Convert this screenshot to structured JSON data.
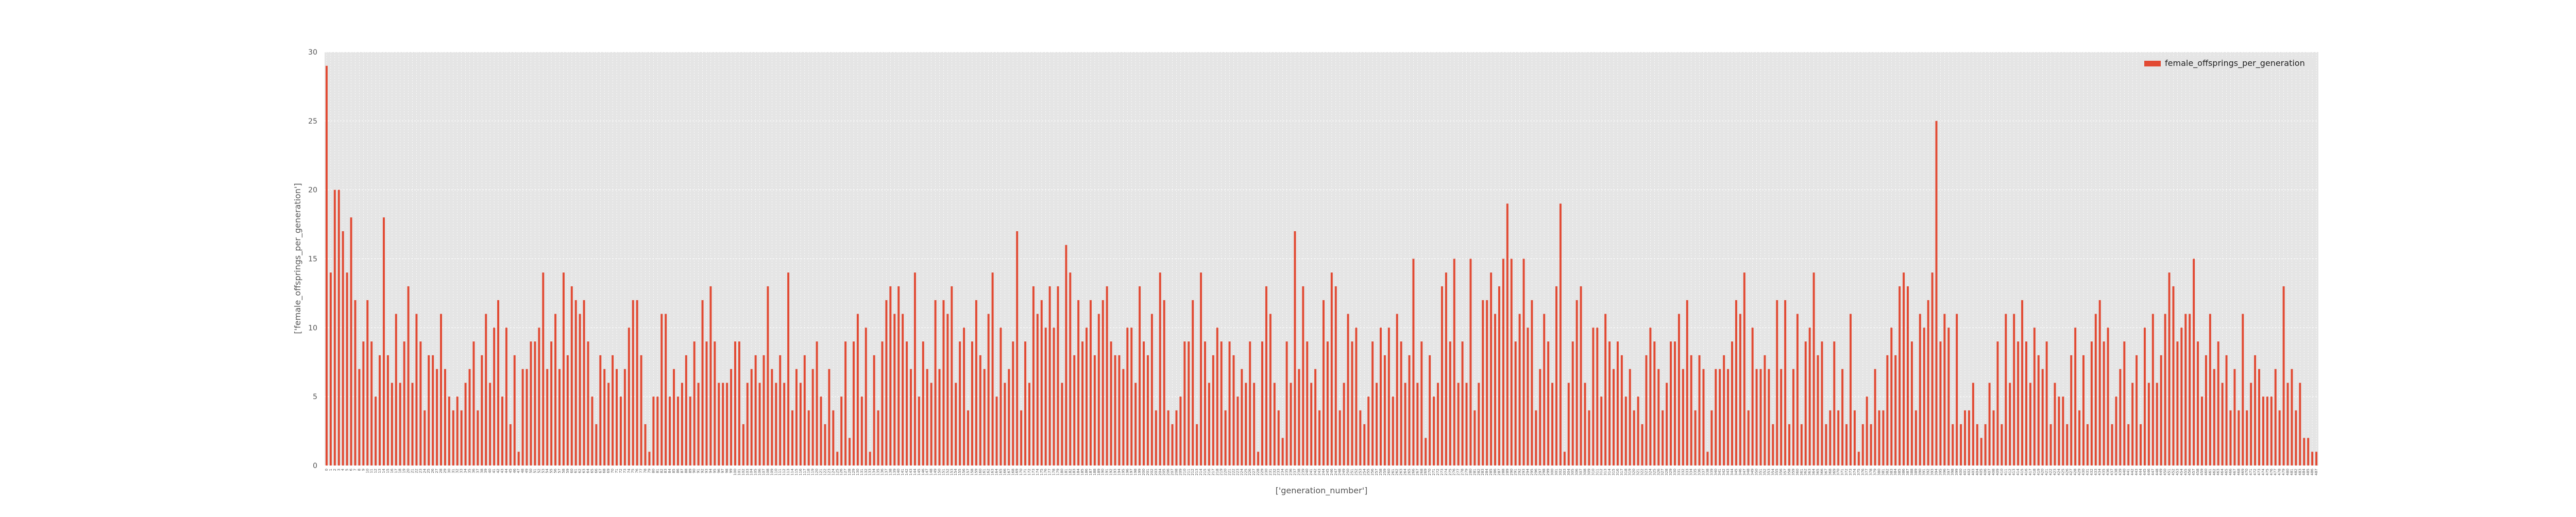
{
  "chart_data": {
    "type": "bar",
    "title": "",
    "xlabel": "['generation_number']",
    "ylabel": "['female_offsprings_per_generation']",
    "ylim": [
      0,
      30
    ],
    "yticks": [
      0,
      5,
      10,
      15,
      20,
      25,
      30
    ],
    "grid": true,
    "legend_position": "top-right",
    "series": [
      {
        "name": "female_offsprings_per_generation",
        "color": "#e24a33",
        "values": [
          29,
          14,
          20,
          20,
          17,
          14,
          18,
          12,
          7,
          9,
          12,
          9,
          5,
          8,
          18,
          8,
          6,
          11,
          6,
          9,
          13,
          6,
          11,
          9,
          4,
          8,
          8,
          7,
          11,
          7,
          5,
          4,
          5,
          4,
          6,
          7,
          9,
          4,
          8,
          11,
          6,
          10,
          12,
          5,
          10,
          3,
          8,
          1,
          7,
          7,
          9,
          9,
          10,
          14,
          7,
          9,
          11,
          7,
          14,
          8,
          13,
          12,
          11,
          12,
          9,
          5,
          3,
          8,
          7,
          6,
          8,
          7,
          5,
          7,
          10,
          12,
          12,
          8,
          3,
          1,
          5,
          5,
          11,
          11,
          5,
          7,
          5,
          6,
          8,
          5,
          9,
          6,
          12,
          9,
          13,
          9,
          6,
          6,
          6,
          7,
          9,
          9,
          3,
          6,
          7,
          8,
          6,
          8,
          13,
          7,
          6,
          8,
          6,
          14,
          4,
          7,
          6,
          8,
          4,
          7,
          9,
          5,
          3,
          7,
          4,
          1,
          5,
          9,
          2,
          9,
          11,
          5,
          10,
          1,
          8,
          4,
          9,
          12,
          13,
          11,
          13,
          11,
          9,
          7,
          14,
          5,
          9,
          7,
          6,
          12,
          7,
          12,
          11,
          13,
          6,
          9,
          10,
          4,
          9,
          12,
          8,
          7,
          11,
          14,
          5,
          10,
          6,
          7,
          9,
          17,
          4,
          9,
          6,
          13,
          11,
          12,
          10,
          13,
          10,
          13,
          6,
          16,
          14,
          8,
          12,
          9,
          10,
          12,
          8,
          11,
          12,
          13,
          9,
          8,
          8,
          7,
          10,
          10,
          6,
          13,
          9,
          8,
          11,
          4,
          14,
          12,
          4,
          3,
          4,
          5,
          9,
          9,
          12,
          3,
          14,
          9,
          6,
          8,
          10,
          9,
          4,
          9,
          8,
          5,
          7,
          6,
          9,
          6,
          1,
          9,
          13,
          11,
          6,
          4,
          2,
          9,
          6,
          17,
          7,
          13,
          9,
          6,
          7,
          4,
          12,
          9,
          14,
          13,
          4,
          6,
          11,
          9,
          10,
          4,
          3,
          5,
          9,
          6,
          10,
          8,
          10,
          5,
          11,
          9,
          6,
          8,
          15,
          6,
          9,
          2,
          8,
          5,
          6,
          13,
          14,
          9,
          15,
          6,
          9,
          6,
          15,
          4,
          6,
          12,
          12,
          14,
          11,
          13,
          15,
          19,
          15,
          9,
          11,
          15,
          10,
          12,
          4,
          7,
          11,
          9,
          6,
          13,
          19,
          1,
          6,
          9,
          12,
          13,
          6,
          4,
          10,
          10,
          5,
          11,
          9,
          7,
          9,
          8,
          5,
          7,
          4,
          5,
          3,
          8,
          10,
          9,
          7,
          4,
          6,
          9,
          9,
          11,
          7,
          12,
          8,
          4,
          8,
          7,
          1,
          4,
          7,
          7,
          8,
          7,
          9,
          12,
          11,
          14,
          4,
          10,
          7,
          7,
          8,
          7,
          3,
          12,
          7,
          12,
          3,
          7,
          11,
          3,
          9,
          10,
          14,
          8,
          9,
          3,
          4,
          9,
          4,
          7,
          3,
          11,
          4,
          1,
          3,
          5,
          3,
          7,
          4,
          4,
          8,
          10,
          8,
          13,
          14,
          13,
          9,
          4,
          11,
          10,
          12,
          14,
          25,
          9,
          11,
          10,
          3,
          11,
          3,
          4,
          4,
          6,
          3,
          2,
          3,
          6,
          4,
          9,
          3,
          11,
          6,
          11,
          9,
          12,
          9,
          6,
          10,
          8,
          7,
          9,
          3,
          6,
          5,
          5,
          3,
          8,
          10,
          4,
          8,
          3,
          9,
          11,
          12,
          9,
          10,
          3,
          5,
          7,
          9,
          3,
          6,
          8,
          3,
          10,
          6,
          11,
          6,
          8,
          11,
          14,
          13,
          9,
          10,
          11,
          11,
          15,
          9,
          5,
          8,
          11,
          7,
          9,
          6,
          8,
          4,
          7,
          4,
          11,
          4,
          6,
          8,
          7,
          5,
          5,
          5,
          7,
          4,
          13,
          6,
          7,
          4,
          6,
          2,
          2,
          1,
          1
        ]
      }
    ]
  }
}
